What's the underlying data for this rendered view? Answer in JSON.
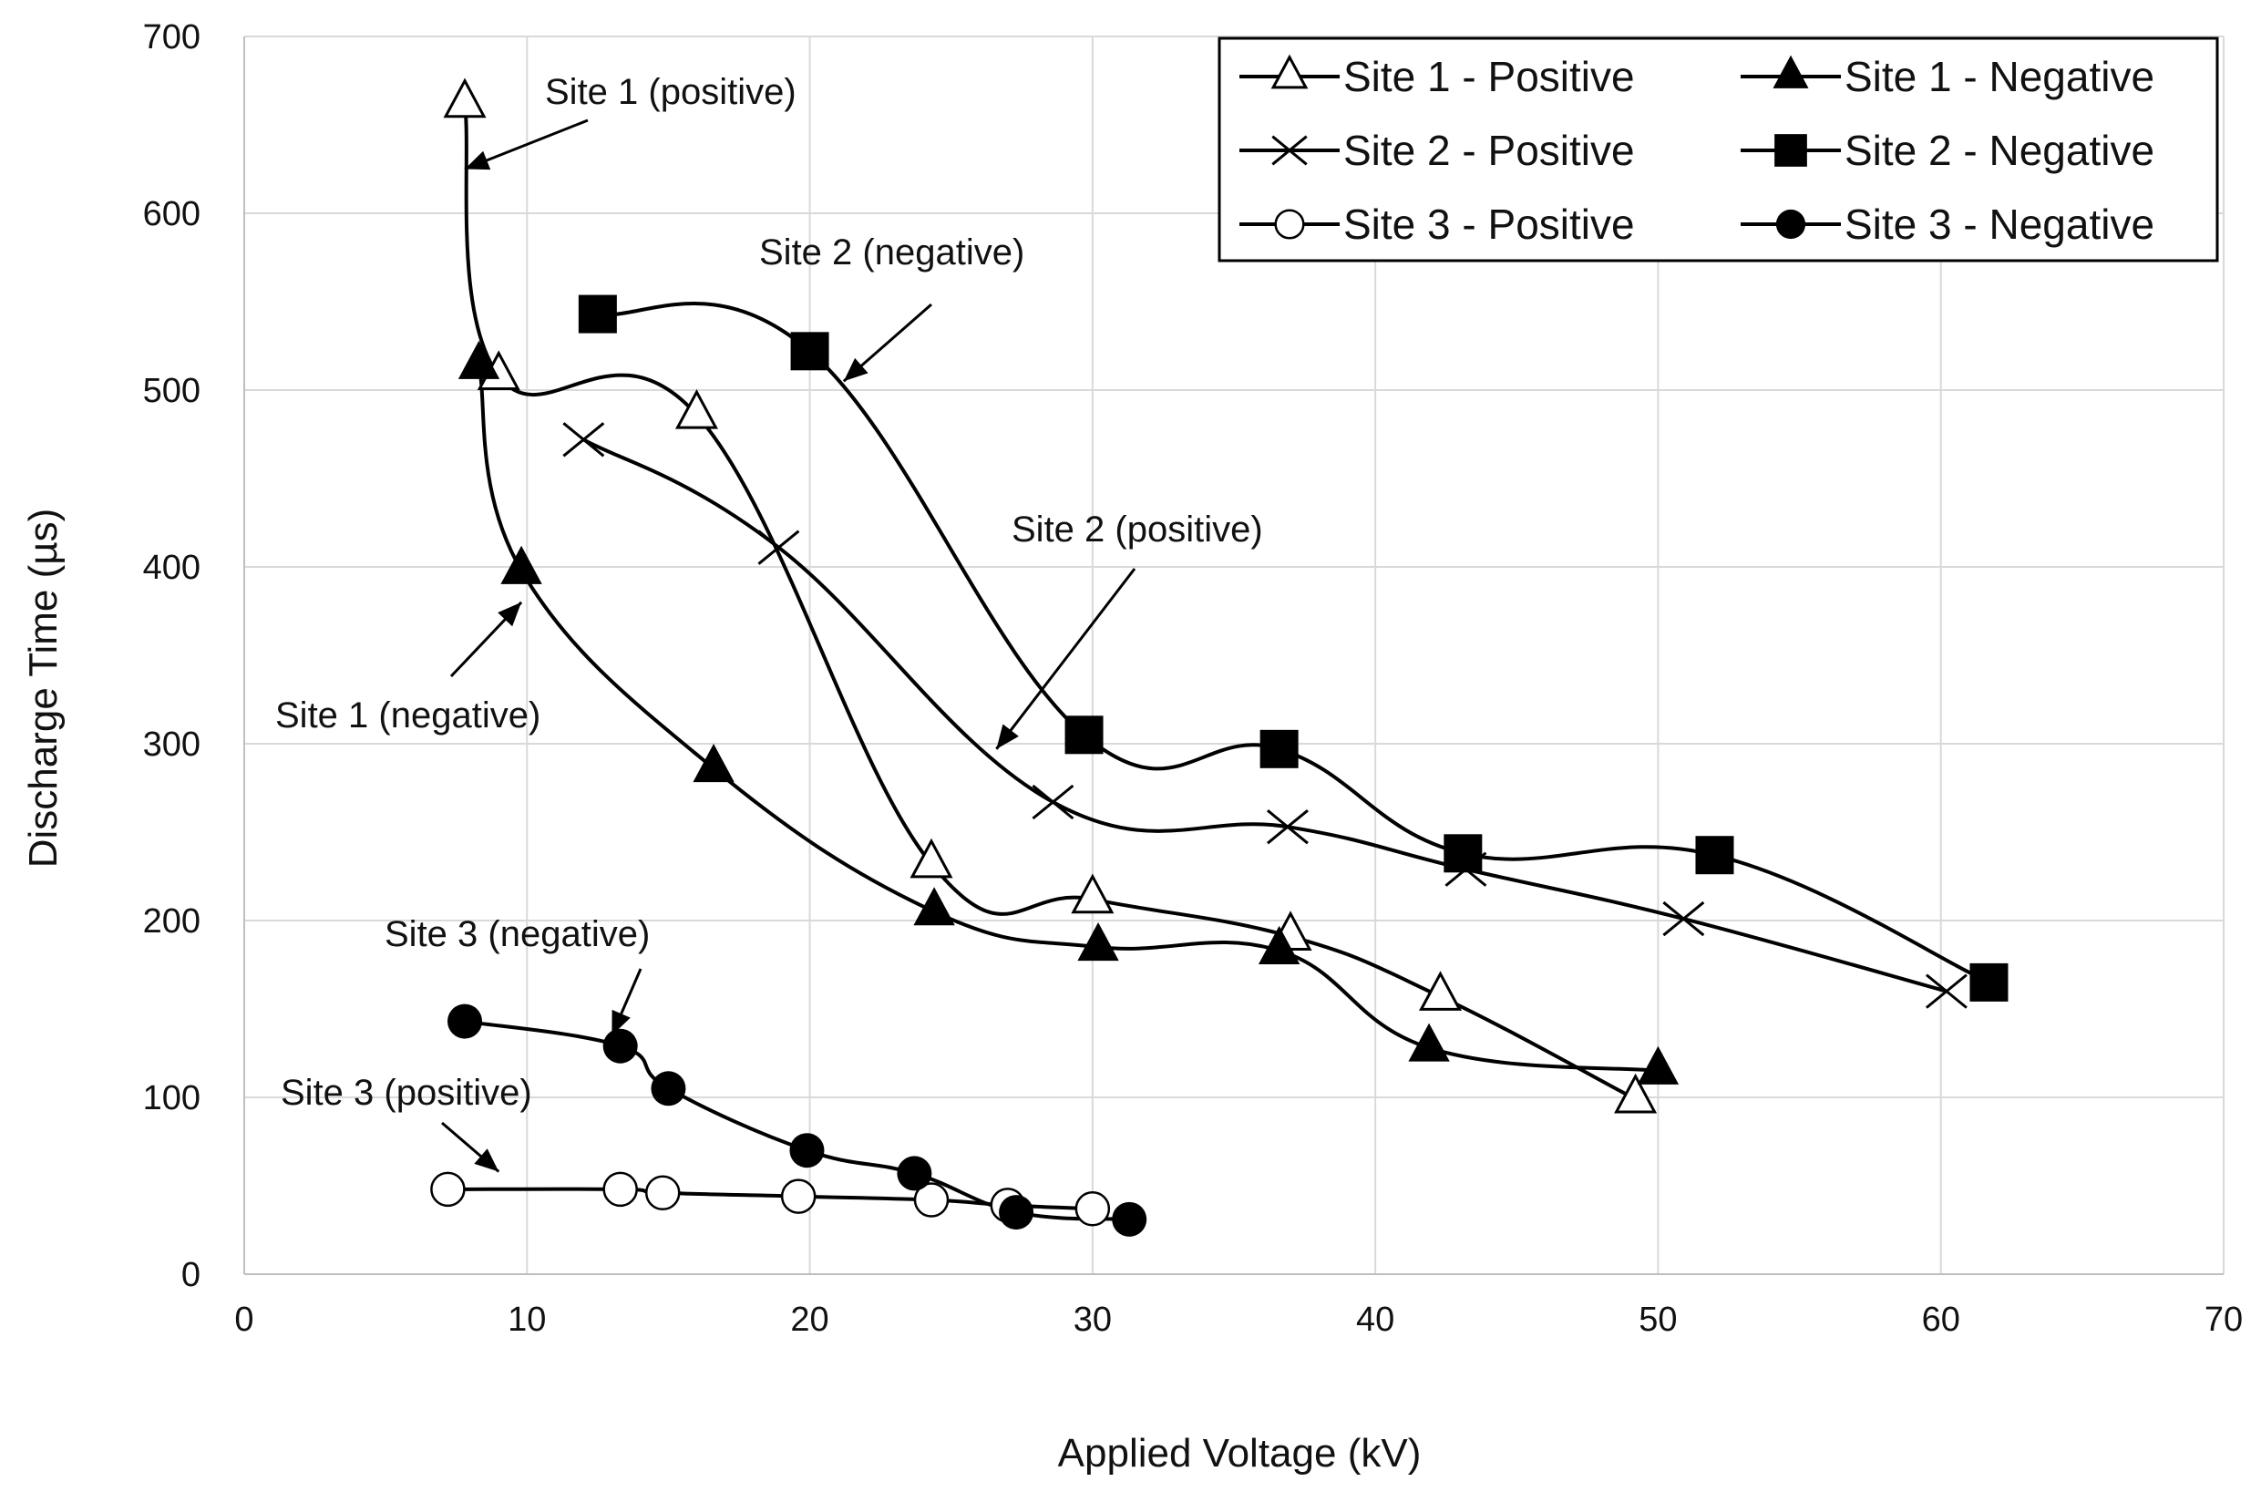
{
  "chart_data": {
    "type": "line",
    "title": "",
    "xlabel": "Applied Voltage (kV)",
    "ylabel": "Discharge Time (µs)",
    "xlim": [
      0,
      70
    ],
    "ylim": [
      0,
      700
    ],
    "xticks": [
      "0",
      "10",
      "20",
      "30",
      "40",
      "50",
      "60",
      "70"
    ],
    "yticks": [
      "0",
      "100",
      "200",
      "300",
      "400",
      "500",
      "600",
      "700"
    ],
    "grid": true,
    "legend_position": "top-right",
    "series": [
      {
        "name": "Site 1 - Positive",
        "marker": "triangle-open",
        "x": [
          7.8,
          9,
          16,
          24.3,
          30,
          37,
          42.3,
          49.2
        ],
        "y": [
          662,
          508,
          486,
          232,
          212,
          191,
          157,
          99
        ]
      },
      {
        "name": "Site 1 - Negative",
        "marker": "triangle-filled",
        "x": [
          8.3,
          9.8,
          16.6,
          24.4,
          30.2,
          36.6,
          41.9,
          50
        ],
        "y": [
          514,
          398,
          286,
          205,
          185,
          183,
          128,
          115
        ]
      },
      {
        "name": "Site 2 - Positive",
        "marker": "cross",
        "x": [
          12,
          18.9,
          28.6,
          36.9,
          43.2,
          50.9,
          60.2
        ],
        "y": [
          472,
          411,
          267,
          253,
          229,
          201,
          160
        ]
      },
      {
        "name": "Site 2 - Negative",
        "marker": "square-filled",
        "x": [
          12.5,
          20,
          29.7,
          36.6,
          43.1,
          52,
          61.7
        ],
        "y": [
          543,
          522,
          305,
          297,
          238,
          237,
          165
        ]
      },
      {
        "name": "Site 3 - Positive",
        "marker": "circle-open",
        "x": [
          7.2,
          13.3,
          14.8,
          19.6,
          24.3,
          27,
          30
        ],
        "y": [
          48,
          48,
          46,
          44,
          42,
          39,
          37
        ]
      },
      {
        "name": "Site 3 - Negative",
        "marker": "circle-filled",
        "x": [
          7.8,
          13.3,
          15,
          19.9,
          23.7,
          27.3,
          31.3
        ],
        "y": [
          143,
          129,
          105,
          70,
          57,
          35,
          31
        ]
      }
    ],
    "annotations": [
      {
        "text": "Site 1 (positive)",
        "target": [
          7.8,
          625
        ]
      },
      {
        "text": "Site 2 (negative)",
        "target": [
          21.2,
          505
        ]
      },
      {
        "text": "Site 2 (positive)",
        "target": [
          26.6,
          297
        ]
      },
      {
        "text": "Site 1 (negative)",
        "target": [
          9.8,
          380
        ]
      },
      {
        "text": "Site 3 (negative)",
        "target": [
          13,
          135
        ]
      },
      {
        "text": "Site 3 (positive)",
        "target": [
          9,
          58
        ]
      }
    ]
  }
}
